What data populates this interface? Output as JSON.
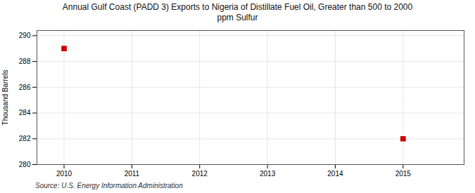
{
  "chart_data": {
    "type": "scatter",
    "title": "Annual Gulf Coast (PADD 3) Exports to Nigeria of Distillate Fuel Oil, Greater than 500 to 2000\nppm Sulfur",
    "ylabel": "Thousand Barrels",
    "source": "Source: U.S. Energy Information Administration",
    "x": [
      2010,
      2015
    ],
    "values": [
      289,
      282
    ],
    "color": "#cc0000",
    "marker": "square",
    "xlim": [
      2009.6,
      2015.9
    ],
    "ylim": [
      280,
      290.4
    ],
    "xticks": [
      2010,
      2011,
      2012,
      2013,
      2014,
      2015
    ],
    "yticks": [
      280,
      282,
      284,
      286,
      288,
      290
    ],
    "grid": true
  }
}
